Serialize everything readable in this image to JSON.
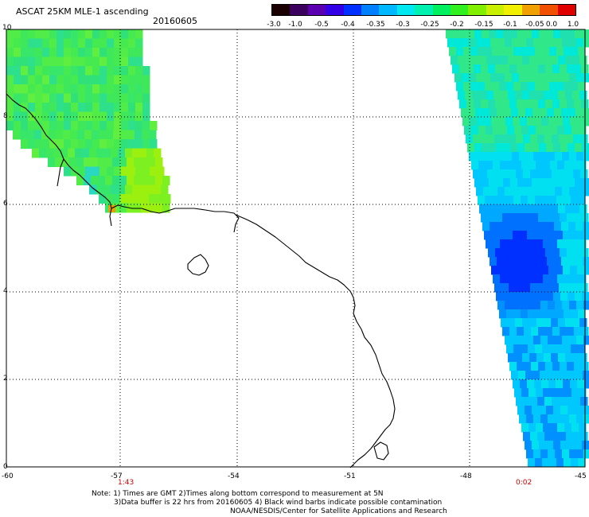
{
  "title": "ASCAT 25KM MLE-1 ascending",
  "date": "20160605",
  "colorbar": {
    "labels": [
      "-3.0",
      "-1.0",
      "-0.5",
      "-0.4",
      "-0.35",
      "-0.3",
      "-0.25",
      "-0.2",
      "-0.15",
      "-0.1",
      "-0.05",
      "0.0",
      "1.0"
    ],
    "colors": [
      "#1a0000",
      "#3b005e",
      "#5a00b0",
      "#3300e6",
      "#0030ff",
      "#0080ff",
      "#00b8ff",
      "#00e8f0",
      "#00f0b0",
      "#00f060",
      "#30f020",
      "#80f000",
      "#c8f000",
      "#f0f000",
      "#f0a000",
      "#f05000",
      "#e00000"
    ]
  },
  "axes": {
    "x_ticks": [
      "-60",
      "-57",
      "-54",
      "-51",
      "-48",
      "-45"
    ],
    "y_ticks": [
      "10",
      "8",
      "6",
      "4",
      "2",
      "0"
    ]
  },
  "pass_times": [
    "1:43",
    "0:02"
  ],
  "notes": {
    "line1": "Note: 1) Times are GMT 2)Times along bottom correspond to measurement at 5N",
    "line2": "3)Data buffer is 22 hrs from 20160605 4) Black wind barbs indicate possible contamination",
    "line3": "NOAA/NESDIS/Center for Satellite Applications and Research"
  }
}
